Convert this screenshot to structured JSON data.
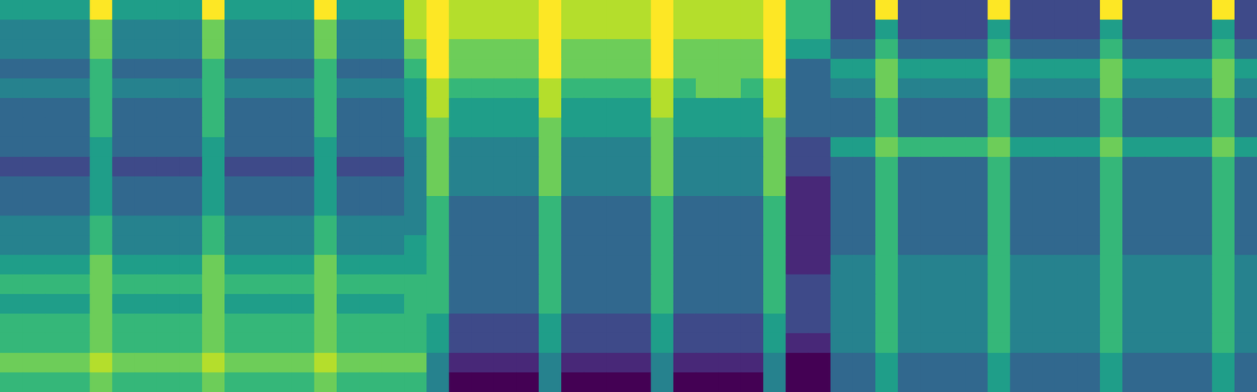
{
  "chart_data": {
    "type": "heatmap",
    "tick_labels": false,
    "zlim": [
      0,
      9
    ],
    "cells": [
      [
        5,
        5,
        5,
        5,
        9,
        5,
        5,
        5,
        5,
        9,
        5,
        5,
        5,
        5,
        9,
        5,
        5,
        5,
        8,
        9,
        8,
        8,
        8,
        8,
        9,
        8,
        8,
        8,
        8,
        9,
        8,
        8,
        8,
        8,
        9,
        6,
        6,
        2,
        2,
        9,
        2,
        2,
        2,
        2,
        9,
        2,
        2,
        2,
        2,
        9,
        2,
        2,
        2,
        2,
        9,
        2
      ],
      [
        4,
        4,
        4,
        4,
        7,
        4,
        4,
        4,
        4,
        7,
        4,
        4,
        4,
        4,
        7,
        4,
        4,
        4,
        8,
        9,
        8,
        8,
        8,
        8,
        9,
        8,
        8,
        8,
        8,
        9,
        8,
        8,
        8,
        8,
        9,
        6,
        6,
        2,
        2,
        5,
        2,
        2,
        2,
        2,
        5,
        2,
        2,
        2,
        2,
        5,
        2,
        2,
        2,
        2,
        5,
        2
      ],
      [
        4,
        4,
        4,
        4,
        7,
        4,
        4,
        4,
        4,
        7,
        4,
        4,
        4,
        4,
        7,
        4,
        4,
        4,
        7,
        9,
        7,
        7,
        7,
        7,
        9,
        7,
        7,
        7,
        7,
        9,
        7,
        7,
        7,
        7,
        9,
        5,
        5,
        3,
        3,
        6,
        3,
        3,
        3,
        3,
        6,
        3,
        3,
        3,
        3,
        6,
        3,
        3,
        3,
        3,
        6,
        3
      ],
      [
        3,
        3,
        3,
        3,
        6,
        3,
        3,
        3,
        3,
        6,
        3,
        3,
        3,
        3,
        6,
        3,
        3,
        3,
        6,
        9,
        7,
        7,
        7,
        7,
        9,
        7,
        7,
        7,
        7,
        9,
        7,
        7,
        7,
        7,
        9,
        3,
        3,
        5,
        5,
        7,
        5,
        5,
        5,
        5,
        7,
        5,
        5,
        5,
        5,
        7,
        5,
        5,
        5,
        5,
        7,
        5
      ],
      [
        4,
        4,
        4,
        4,
        6,
        4,
        4,
        4,
        4,
        6,
        4,
        4,
        4,
        4,
        6,
        4,
        4,
        4,
        5,
        8,
        6,
        6,
        6,
        6,
        8,
        6,
        6,
        6,
        6,
        8,
        6,
        7,
        7,
        6,
        8,
        3,
        3,
        4,
        4,
        7,
        4,
        4,
        4,
        4,
        7,
        4,
        4,
        4,
        4,
        7,
        4,
        4,
        4,
        4,
        7,
        4
      ],
      [
        3,
        3,
        3,
        3,
        6,
        3,
        3,
        3,
        3,
        6,
        3,
        3,
        3,
        3,
        6,
        3,
        3,
        3,
        5,
        8,
        5,
        5,
        5,
        5,
        8,
        5,
        5,
        5,
        5,
        8,
        5,
        5,
        5,
        5,
        8,
        3,
        3,
        3,
        3,
        6,
        3,
        3,
        3,
        3,
        6,
        3,
        3,
        3,
        3,
        6,
        3,
        3,
        3,
        3,
        6,
        3
      ],
      [
        3,
        3,
        3,
        3,
        6,
        3,
        3,
        3,
        3,
        6,
        3,
        3,
        3,
        3,
        6,
        3,
        3,
        3,
        5,
        7,
        5,
        5,
        5,
        5,
        7,
        5,
        5,
        5,
        5,
        7,
        5,
        5,
        5,
        5,
        7,
        3,
        3,
        3,
        3,
        6,
        3,
        3,
        3,
        3,
        6,
        3,
        3,
        3,
        3,
        6,
        3,
        3,
        3,
        3,
        6,
        3
      ],
      [
        3,
        3,
        3,
        3,
        5,
        3,
        3,
        3,
        3,
        5,
        3,
        3,
        3,
        3,
        5,
        3,
        3,
        3,
        4,
        7,
        4,
        4,
        4,
        4,
        7,
        4,
        4,
        4,
        4,
        7,
        4,
        4,
        4,
        4,
        7,
        2,
        2,
        5,
        5,
        7,
        6,
        6,
        6,
        6,
        7,
        5,
        5,
        5,
        5,
        7,
        5,
        5,
        5,
        5,
        7,
        5
      ],
      [
        2,
        2,
        2,
        2,
        5,
        2,
        2,
        2,
        2,
        5,
        2,
        2,
        2,
        2,
        5,
        2,
        2,
        2,
        4,
        7,
        4,
        4,
        4,
        4,
        7,
        4,
        4,
        4,
        4,
        7,
        4,
        4,
        4,
        4,
        7,
        2,
        2,
        3,
        3,
        6,
        3,
        3,
        3,
        3,
        6,
        3,
        3,
        3,
        3,
        6,
        3,
        3,
        3,
        3,
        6,
        3
      ],
      [
        3,
        3,
        3,
        3,
        5,
        3,
        3,
        3,
        3,
        5,
        3,
        3,
        3,
        3,
        5,
        3,
        3,
        3,
        4,
        7,
        4,
        4,
        4,
        4,
        7,
        4,
        4,
        4,
        4,
        7,
        4,
        4,
        4,
        4,
        7,
        1,
        1,
        3,
        3,
        6,
        3,
        3,
        3,
        3,
        6,
        3,
        3,
        3,
        3,
        6,
        3,
        3,
        3,
        3,
        6,
        3
      ],
      [
        3,
        3,
        3,
        3,
        5,
        3,
        3,
        3,
        3,
        5,
        3,
        3,
        3,
        3,
        5,
        3,
        3,
        3,
        4,
        6,
        3,
        3,
        3,
        3,
        6,
        3,
        3,
        3,
        3,
        6,
        3,
        3,
        3,
        3,
        6,
        1,
        1,
        3,
        3,
        6,
        3,
        3,
        3,
        3,
        6,
        3,
        3,
        3,
        3,
        6,
        3,
        3,
        3,
        3,
        6,
        3
      ],
      [
        4,
        4,
        4,
        4,
        6,
        4,
        4,
        4,
        4,
        6,
        4,
        4,
        4,
        4,
        6,
        4,
        4,
        4,
        4,
        6,
        3,
        3,
        3,
        3,
        6,
        3,
        3,
        3,
        3,
        6,
        3,
        3,
        3,
        3,
        6,
        1,
        1,
        3,
        3,
        6,
        3,
        3,
        3,
        3,
        6,
        3,
        3,
        3,
        3,
        6,
        3,
        3,
        3,
        3,
        6,
        3
      ],
      [
        4,
        4,
        4,
        4,
        6,
        4,
        4,
        4,
        4,
        6,
        4,
        4,
        4,
        4,
        6,
        4,
        4,
        4,
        5,
        6,
        3,
        3,
        3,
        3,
        6,
        3,
        3,
        3,
        3,
        6,
        3,
        3,
        3,
        3,
        6,
        1,
        1,
        3,
        3,
        6,
        3,
        3,
        3,
        3,
        6,
        3,
        3,
        3,
        3,
        6,
        3,
        3,
        3,
        3,
        6,
        3
      ],
      [
        5,
        5,
        5,
        5,
        7,
        5,
        5,
        5,
        5,
        7,
        5,
        5,
        5,
        5,
        7,
        5,
        5,
        5,
        5,
        6,
        3,
        3,
        3,
        3,
        6,
        3,
        3,
        3,
        3,
        6,
        3,
        3,
        3,
        3,
        6,
        1,
        1,
        4,
        4,
        6,
        4,
        4,
        4,
        4,
        6,
        4,
        4,
        4,
        4,
        6,
        4,
        4,
        4,
        4,
        6,
        4
      ],
      [
        6,
        6,
        6,
        6,
        7,
        6,
        6,
        6,
        6,
        7,
        6,
        6,
        6,
        6,
        7,
        6,
        6,
        6,
        6,
        6,
        3,
        3,
        3,
        3,
        6,
        3,
        3,
        3,
        3,
        6,
        3,
        3,
        3,
        3,
        6,
        2,
        2,
        4,
        4,
        6,
        4,
        4,
        4,
        4,
        6,
        4,
        4,
        4,
        4,
        6,
        4,
        4,
        4,
        4,
        6,
        4
      ],
      [
        5,
        5,
        5,
        5,
        7,
        5,
        5,
        5,
        5,
        7,
        5,
        5,
        5,
        5,
        7,
        5,
        5,
        5,
        6,
        6,
        3,
        3,
        3,
        3,
        6,
        3,
        3,
        3,
        3,
        6,
        3,
        3,
        3,
        3,
        6,
        2,
        2,
        4,
        4,
        6,
        4,
        4,
        4,
        4,
        6,
        4,
        4,
        4,
        4,
        6,
        4,
        4,
        4,
        4,
        6,
        4
      ],
      [
        6,
        6,
        6,
        6,
        7,
        6,
        6,
        6,
        6,
        7,
        6,
        6,
        6,
        6,
        7,
        6,
        6,
        6,
        6,
        5,
        2,
        2,
        2,
        2,
        5,
        2,
        2,
        2,
        2,
        5,
        2,
        2,
        2,
        2,
        5,
        2,
        2,
        4,
        4,
        6,
        4,
        4,
        4,
        4,
        6,
        4,
        4,
        4,
        4,
        6,
        4,
        4,
        4,
        4,
        6,
        4
      ],
      [
        6,
        6,
        6,
        6,
        7,
        6,
        6,
        6,
        6,
        7,
        6,
        6,
        6,
        6,
        7,
        6,
        6,
        6,
        6,
        5,
        2,
        2,
        2,
        2,
        5,
        2,
        2,
        2,
        2,
        5,
        2,
        2,
        2,
        2,
        5,
        1,
        1,
        4,
        4,
        6,
        4,
        4,
        4,
        4,
        6,
        4,
        4,
        4,
        4,
        6,
        4,
        4,
        4,
        4,
        6,
        4
      ],
      [
        7,
        7,
        7,
        7,
        8,
        7,
        7,
        7,
        7,
        8,
        7,
        7,
        7,
        7,
        8,
        7,
        7,
        7,
        7,
        4,
        1,
        1,
        1,
        1,
        4,
        1,
        1,
        1,
        1,
        4,
        1,
        1,
        1,
        1,
        4,
        0,
        0,
        3,
        3,
        5,
        3,
        3,
        3,
        3,
        5,
        3,
        3,
        3,
        3,
        5,
        3,
        3,
        3,
        3,
        5,
        3
      ],
      [
        6,
        6,
        6,
        6,
        7,
        6,
        6,
        6,
        6,
        7,
        6,
        6,
        6,
        6,
        7,
        6,
        6,
        6,
        6,
        4,
        0,
        0,
        0,
        0,
        4,
        0,
        0,
        0,
        0,
        4,
        0,
        0,
        0,
        0,
        4,
        0,
        0,
        3,
        3,
        5,
        3,
        3,
        3,
        3,
        5,
        3,
        3,
        3,
        3,
        5,
        3,
        3,
        3,
        3,
        5,
        3
      ]
    ]
  }
}
